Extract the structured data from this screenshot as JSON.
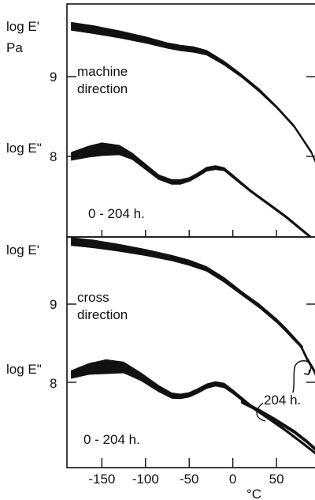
{
  "chart_data": [
    {
      "type": "line",
      "panel": "top",
      "ylabel_upper": "log E'",
      "ylabel_upper_unit": "Pa",
      "ylabel_lower": "log E\"",
      "yticks": [
        "9",
        "8"
      ],
      "annotation_direction": [
        "machine",
        "direction"
      ],
      "annotation_time": "0 - 204 h.",
      "xlim": [
        -190,
        95
      ],
      "series": [
        {
          "name": "log E'",
          "x": [
            -185,
            -160,
            -130,
            -100,
            -75,
            -60,
            -45,
            -30,
            -10,
            10,
            30,
            50,
            70,
            90,
            95
          ],
          "y": [
            9.63,
            9.59,
            9.53,
            9.46,
            9.39,
            9.36,
            9.34,
            9.3,
            9.17,
            9.01,
            8.83,
            8.62,
            8.38,
            8.05,
            7.92
          ],
          "band": [
            0.05,
            0.05,
            0.045,
            0.04,
            0.035,
            0.035,
            0.035,
            0.03,
            0.025,
            0.02,
            0.02,
            0.015,
            0.015,
            0.015,
            0.015
          ]
        },
        {
          "name": "log E\"",
          "x": [
            -185,
            -165,
            -150,
            -130,
            -115,
            -100,
            -85,
            -70,
            -60,
            -50,
            -40,
            -30,
            -20,
            -10,
            0,
            20,
            40,
            60,
            80,
            90
          ],
          "y": [
            8.0,
            8.06,
            8.09,
            8.08,
            8.0,
            7.87,
            7.74,
            7.68,
            7.68,
            7.71,
            7.77,
            7.84,
            7.86,
            7.84,
            7.75,
            7.57,
            7.41,
            7.25,
            7.07,
            6.98
          ],
          "band": [
            0.05,
            0.07,
            0.08,
            0.06,
            0.04,
            0.035,
            0.03,
            0.03,
            0.03,
            0.025,
            0.025,
            0.025,
            0.025,
            0.02,
            0.02,
            0.015,
            0.015,
            0.015,
            0.015,
            0.015
          ]
        }
      ]
    },
    {
      "type": "line",
      "panel": "bottom",
      "ylabel_upper": "log E'",
      "ylabel_lower": "log E\"",
      "yticks": [
        "9",
        "8"
      ],
      "annotation_direction": [
        "cross",
        "direction"
      ],
      "annotation_time": "0 - 204 h.",
      "annotation_aged": "204 h.",
      "xlabel": "°C",
      "xticks": [
        -150,
        -100,
        -50,
        0,
        50
      ],
      "xlim": [
        -190,
        95
      ],
      "series": [
        {
          "name": "log E'",
          "x": [
            -185,
            -160,
            -130,
            -100,
            -70,
            -50,
            -30,
            -10,
            10,
            30,
            50,
            60,
            70,
            80
          ],
          "y": [
            9.8,
            9.77,
            9.72,
            9.66,
            9.59,
            9.53,
            9.45,
            9.31,
            9.14,
            8.98,
            8.79,
            8.68,
            8.56,
            8.44
          ],
          "band": [
            0.05,
            0.05,
            0.045,
            0.04,
            0.035,
            0.035,
            0.03,
            0.03,
            0.025,
            0.025,
            0.025,
            0.025,
            0.025,
            0.02
          ]
        },
        {
          "name": "log E' 204 h.",
          "x": [
            78,
            85,
            92,
            95
          ],
          "y": [
            8.46,
            8.3,
            8.17,
            8.1
          ],
          "band": [
            0.015,
            0.015,
            0.015,
            0.015
          ]
        },
        {
          "name": "log E\"",
          "x": [
            -185,
            -165,
            -145,
            -125,
            -105,
            -85,
            -70,
            -60,
            -50,
            -40,
            -30,
            -20,
            -10,
            0,
            20,
            40,
            60,
            80,
            95
          ],
          "y": [
            8.1,
            8.17,
            8.2,
            8.19,
            8.07,
            7.92,
            7.83,
            7.82,
            7.84,
            7.89,
            7.95,
            7.98,
            7.96,
            7.88,
            7.7,
            7.55,
            7.39,
            7.22,
            7.09
          ],
          "band": [
            0.05,
            0.07,
            0.09,
            0.07,
            0.05,
            0.04,
            0.035,
            0.03,
            0.03,
            0.03,
            0.03,
            0.03,
            0.03,
            0.025,
            0.02,
            0.02,
            0.015,
            0.015,
            0.015
          ]
        },
        {
          "name": "log E\" 204 h.",
          "x": [
            10,
            30,
            50,
            70,
            85,
            95
          ],
          "y": [
            7.75,
            7.64,
            7.51,
            7.37,
            7.24,
            7.14
          ],
          "band": [
            0.015,
            0.015,
            0.015,
            0.015,
            0.015,
            0.015
          ]
        }
      ]
    }
  ]
}
